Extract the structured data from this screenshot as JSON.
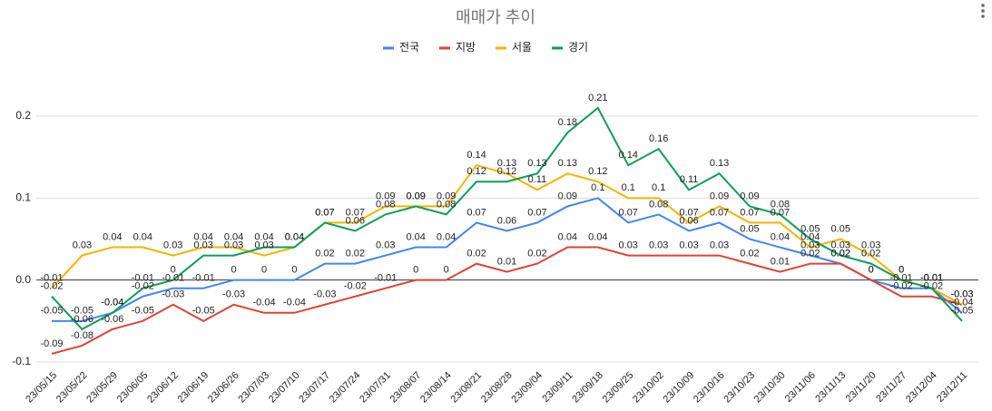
{
  "chart_data": {
    "type": "line",
    "title": "매매가 추이",
    "categories": [
      "23/05/15",
      "23/05/22",
      "23/05/29",
      "23/06/05",
      "23/06/12",
      "23/06/19",
      "23/06/26",
      "23/07/03",
      "23/07/10",
      "23/07/17",
      "23/07/24",
      "23/07/31",
      "23/08/07",
      "23/08/14",
      "23/08/21",
      "23/08/28",
      "23/09/04",
      "23/09/11",
      "23/09/18",
      "23/09/25",
      "23/10/02",
      "23/10/09",
      "23/10/16",
      "23/10/23",
      "23/10/30",
      "23/11/06",
      "23/11/13",
      "23/11/20",
      "23/11/27",
      "23/12/04",
      "23/12/11"
    ],
    "series": [
      {
        "name": "전국",
        "color": "#4285f4",
        "values": [
          -0.05,
          -0.05,
          -0.04,
          -0.02,
          -0.01,
          -0.01,
          0,
          0,
          0,
          0.02,
          0.02,
          0.03,
          0.04,
          0.04,
          0.07,
          0.06,
          0.07,
          0.09,
          0.1,
          0.07,
          0.08,
          0.06,
          0.07,
          0.05,
          0.04,
          0.03,
          0.02,
          0,
          -0.01,
          -0.01,
          -0.04
        ]
      },
      {
        "name": "지방",
        "color": "#db4437",
        "values": [
          -0.09,
          -0.08,
          -0.06,
          -0.05,
          -0.03,
          -0.05,
          -0.03,
          -0.04,
          -0.04,
          -0.03,
          -0.02,
          -0.01,
          0,
          0,
          0.02,
          0.01,
          0.02,
          0.04,
          0.04,
          0.03,
          0.03,
          0.03,
          0.03,
          0.02,
          0.01,
          0.02,
          0.02,
          0,
          -0.02,
          -0.02,
          -0.03
        ]
      },
      {
        "name": "서울",
        "color": "#f4b400",
        "values": [
          -0.01,
          0.03,
          0.04,
          0.04,
          0.03,
          0.04,
          0.04,
          0.03,
          0.04,
          0.07,
          0.07,
          0.09,
          0.09,
          0.09,
          0.14,
          0.13,
          0.11,
          0.13,
          0.12,
          0.1,
          0.1,
          0.07,
          0.09,
          0.07,
          0.07,
          0.04,
          0.05,
          0.03,
          0,
          -0.01,
          -0.03
        ]
      },
      {
        "name": "경기",
        "color": "#0f9d58",
        "values": [
          -0.02,
          -0.06,
          -0.04,
          -0.01,
          0,
          0.03,
          0.03,
          0.04,
          0.04,
          0.07,
          0.06,
          0.08,
          0.09,
          0.08,
          0.12,
          0.12,
          0.13,
          0.18,
          0.21,
          0.14,
          0.16,
          0.11,
          0.13,
          0.09,
          0.08,
          0.05,
          0.03,
          0.02,
          0,
          -0.01,
          -0.05
        ]
      }
    ],
    "ylim": [
      -0.1,
      0.2
    ],
    "yticks": [
      -0.1,
      {
        "value": 0,
        "label": "0.0"
      },
      0.1,
      0.2
    ],
    "grid": true
  }
}
